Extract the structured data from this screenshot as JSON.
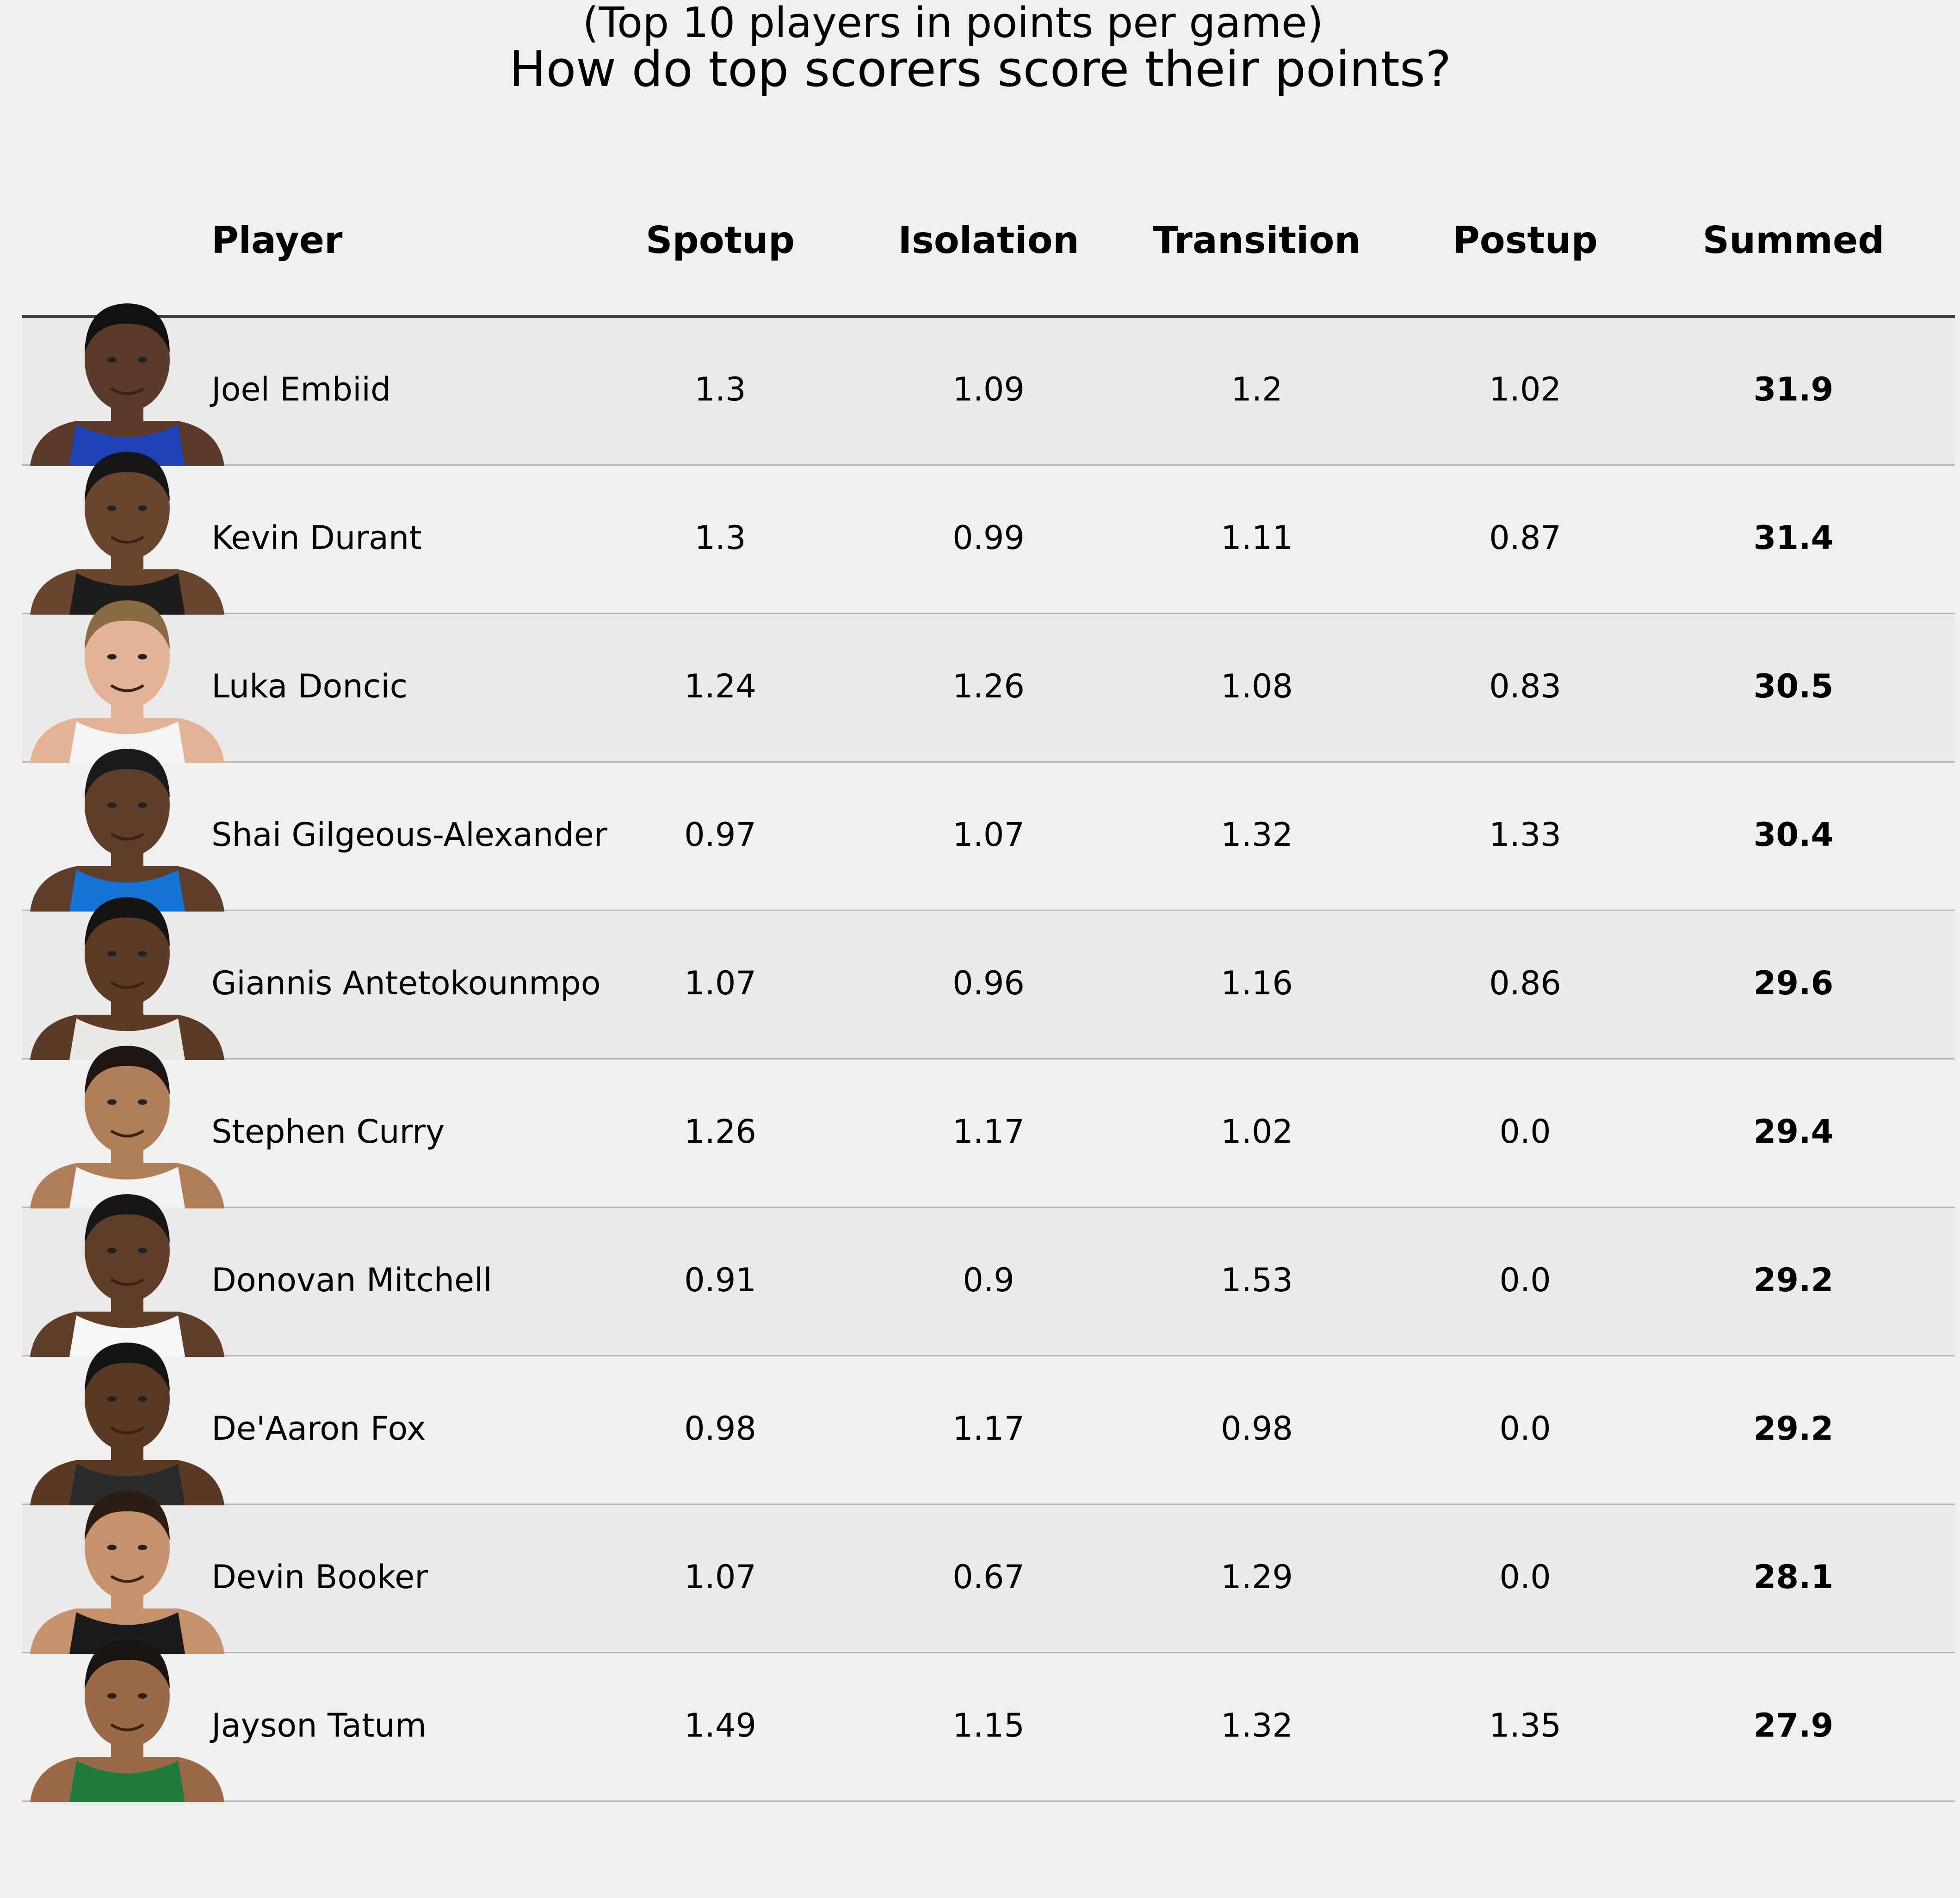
{
  "chart_data": {
    "type": "table",
    "title": "How do top scorers score their points?",
    "subtitle": "(Top 10 players in points per game)",
    "columns": [
      "Player",
      "Spotup",
      "Isolation",
      "Transition",
      "Postup",
      "Summed"
    ],
    "rows": [
      {
        "player": "Joel Embiid",
        "spotup": "1.3",
        "isolation": "1.09",
        "transition": "1.2",
        "postup": "1.02",
        "summed": "31.9",
        "jersey": "#1d42ba",
        "skin": "#5a3a28",
        "hair": "#111111"
      },
      {
        "player": "Kevin Durant",
        "spotup": "1.3",
        "isolation": "0.99",
        "transition": "1.11",
        "postup": "0.87",
        "summed": "31.4",
        "jersey": "#1d1d1d",
        "skin": "#6a4530",
        "hair": "#161616"
      },
      {
        "player": "Luka Doncic",
        "spotup": "1.24",
        "isolation": "1.26",
        "transition": "1.08",
        "postup": "0.83",
        "summed": "30.5",
        "jersey": "#f4f4f4",
        "skin": "#e2b394",
        "hair": "#8a6a45"
      },
      {
        "player": "Shai Gilgeous-Alexander",
        "spotup": "0.97",
        "isolation": "1.07",
        "transition": "1.32",
        "postup": "1.33",
        "summed": "30.4",
        "jersey": "#1573d4",
        "skin": "#5e3e2a",
        "hair": "#1a1a1a"
      },
      {
        "player": "Giannis Antetokounmpo",
        "spotup": "1.07",
        "isolation": "0.96",
        "transition": "1.16",
        "postup": "0.86",
        "summed": "29.6",
        "jersey": "#e9e9e6",
        "skin": "#5b3a26",
        "hair": "#141414"
      },
      {
        "player": "Stephen Curry",
        "spotup": "1.26",
        "isolation": "1.17",
        "transition": "1.02",
        "postup": "0.0",
        "summed": "29.4",
        "jersey": "#f2f2f2",
        "skin": "#b07f5a",
        "hair": "#1d1612"
      },
      {
        "player": "Donovan Mitchell",
        "spotup": "0.91",
        "isolation": "0.9",
        "transition": "1.53",
        "postup": "0.0",
        "summed": "29.2",
        "jersey": "#f6f6f6",
        "skin": "#5f3d28",
        "hair": "#161616"
      },
      {
        "player": "De'Aaron Fox",
        "spotup": "0.98",
        "isolation": "1.17",
        "transition": "0.98",
        "postup": "0.0",
        "summed": "29.2",
        "jersey": "#2a2a2a",
        "skin": "#5a3924",
        "hair": "#141414"
      },
      {
        "player": "Devin Booker",
        "spotup": "1.07",
        "isolation": "0.67",
        "transition": "1.29",
        "postup": "0.0",
        "summed": "28.1",
        "jersey": "#1b1b1b",
        "skin": "#c6926d",
        "hair": "#2b1d14"
      },
      {
        "player": "Jayson Tatum",
        "spotup": "1.49",
        "isolation": "1.15",
        "transition": "1.32",
        "postup": "1.35",
        "summed": "27.9",
        "jersey": "#1f7a3e",
        "skin": "#9a6a48",
        "hair": "#1a1410"
      }
    ]
  }
}
